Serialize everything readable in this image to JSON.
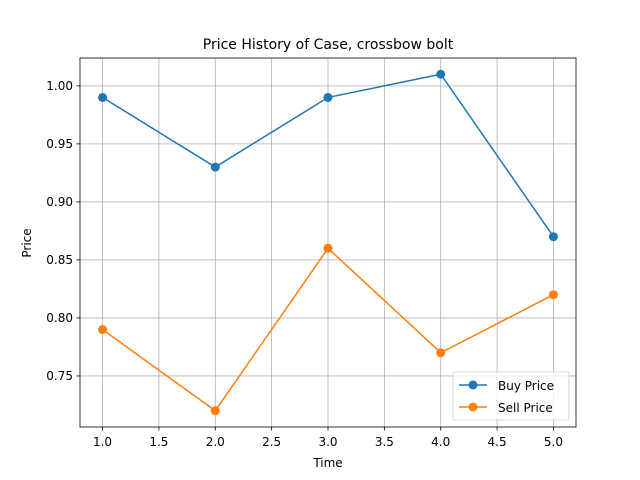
{
  "chart_data": {
    "type": "line",
    "title": "Price History of Case, crossbow bolt",
    "xlabel": "Time",
    "ylabel": "Price",
    "x": [
      1,
      2,
      3,
      4,
      5
    ],
    "series": [
      {
        "name": "Buy Price",
        "values": [
          0.99,
          0.93,
          0.99,
          1.01,
          0.87
        ],
        "color": "#1f77b4",
        "marker": "circle"
      },
      {
        "name": "Sell Price",
        "values": [
          0.79,
          0.72,
          0.86,
          0.77,
          0.82
        ],
        "color": "#ff7f0e",
        "marker": "circle"
      }
    ],
    "xlim": [
      0.8,
      5.2
    ],
    "ylim": [
      0.706,
      1.024
    ],
    "xticks": [
      "1.0",
      "1.5",
      "2.0",
      "2.5",
      "3.0",
      "3.5",
      "4.0",
      "4.5",
      "5.0"
    ],
    "yticks": [
      "0.75",
      "0.80",
      "0.85",
      "0.90",
      "0.95",
      "1.00"
    ],
    "grid": true,
    "legend_position": "lower right"
  }
}
